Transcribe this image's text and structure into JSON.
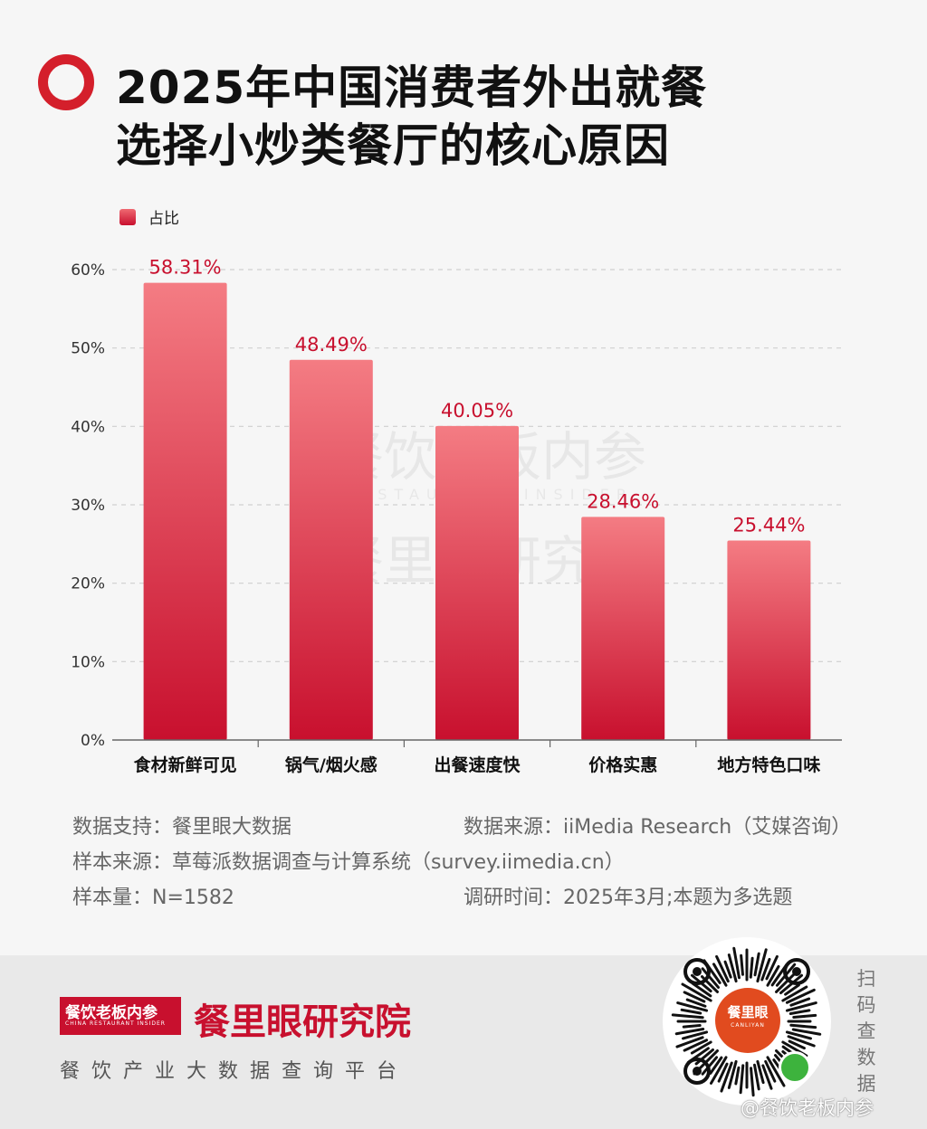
{
  "title": {
    "line1": "2025年中国消费者外出就餐",
    "line2": "选择小炒类餐厅的核心原因"
  },
  "colors": {
    "accent": "#d41f2b",
    "bar_top": "#f47c83",
    "bar_bottom": "#c8102e",
    "value_label": "#c8102e"
  },
  "chart_data": {
    "type": "bar",
    "categories": [
      "食材新鲜可见",
      "锅气/烟火感",
      "出餐速度快",
      "价格实惠",
      "地方特色口味"
    ],
    "series": [
      {
        "name": "占比",
        "values": [
          58.31,
          48.49,
          40.05,
          28.46,
          25.44
        ]
      }
    ],
    "value_labels": [
      "58.31%",
      "48.49%",
      "40.05%",
      "28.46%",
      "25.44%"
    ],
    "yticks": [
      "0%",
      "10%",
      "20%",
      "30%",
      "40%",
      "50%",
      "60%"
    ],
    "ylim": [
      0,
      60
    ],
    "grid": true,
    "legend_position": "top-left"
  },
  "watermark": {
    "line1": "餐饮老板内参",
    "sub": "RESTAURANT INSIDER",
    "line2": "餐里眼研究院"
  },
  "footnotes": {
    "data_support": "数据支持：餐里眼大数据",
    "data_source": "数据来源：iiMedia Research（艾媒咨询）",
    "sample_source": "样本来源：草莓派数据调查与计算系统（survey.iimedia.cn）",
    "sample_size": "样本量：N=1582",
    "survey_time": "调研时间：2025年3月;本题为多选题"
  },
  "footer": {
    "badge_text": "餐饮老板内参",
    "badge_sub": "CHINA RESTAURANT INSIDER",
    "brand_name": "餐里眼研究院",
    "tagline": "餐饮产业大数据查询平台",
    "qr_center_text": "餐里眼",
    "qr_center_sub": "CANLIYAN",
    "scan_label": "扫码查数据",
    "weibo_label": "@餐饮老板内参"
  }
}
